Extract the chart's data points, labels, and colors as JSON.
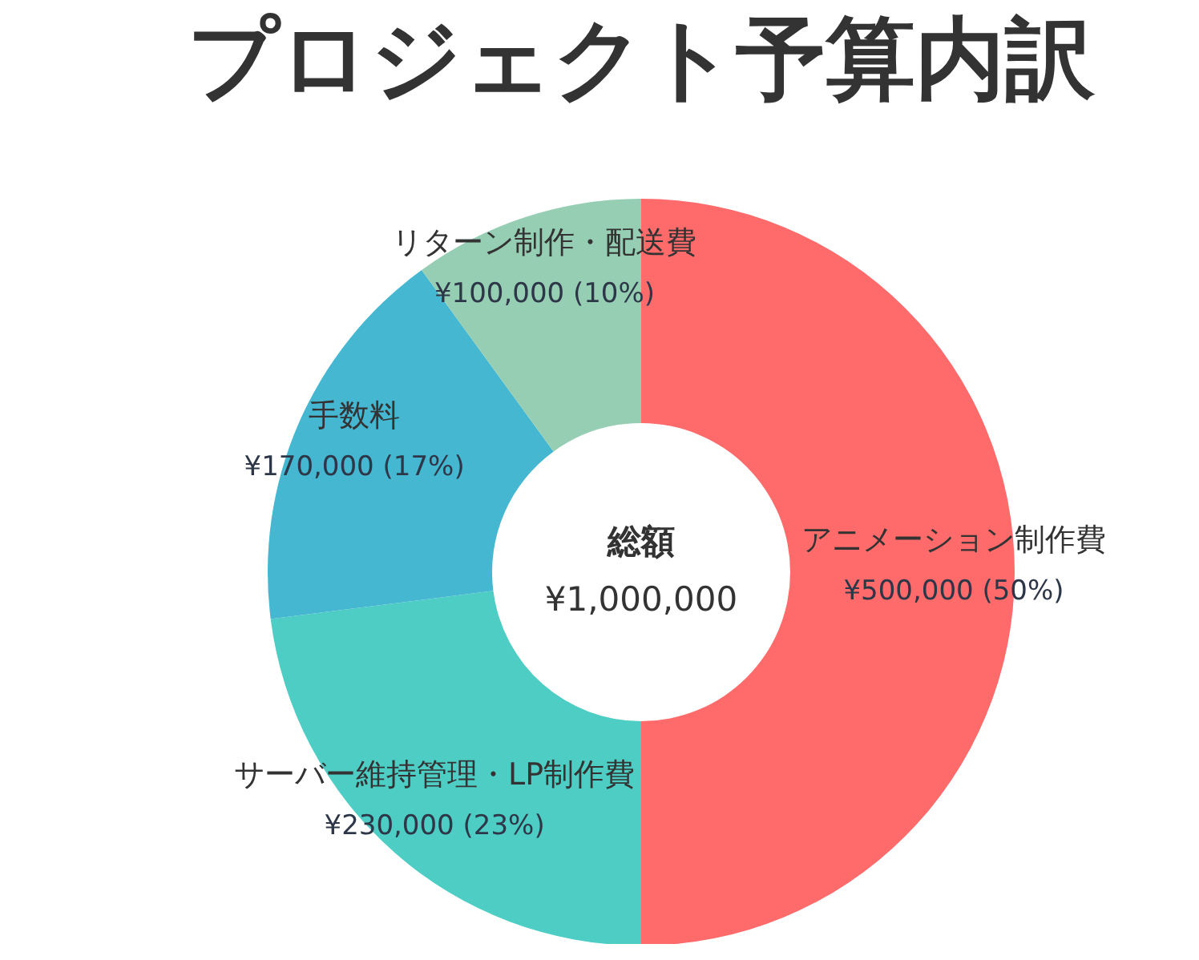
{
  "chart_data": {
    "type": "donut",
    "title": "プロジェクト予算内訳",
    "categories": [
      "アニメーション制作費",
      "サーバー維持管理・LP制作費",
      "手数料",
      "リターン制作・配送費"
    ],
    "values": [
      500000,
      230000,
      170000,
      100000
    ],
    "colors": [
      "#ff6b6b",
      "#4ecdc4",
      "#45b7d1",
      "#96ceb4"
    ],
    "value_labels": [
      "¥500,000 (50%)",
      "¥230,000 (23%)",
      "¥170,000 (17%)",
      "¥100,000 (10%)"
    ],
    "annotations": [
      "総額",
      "¥1,000,000"
    ]
  }
}
